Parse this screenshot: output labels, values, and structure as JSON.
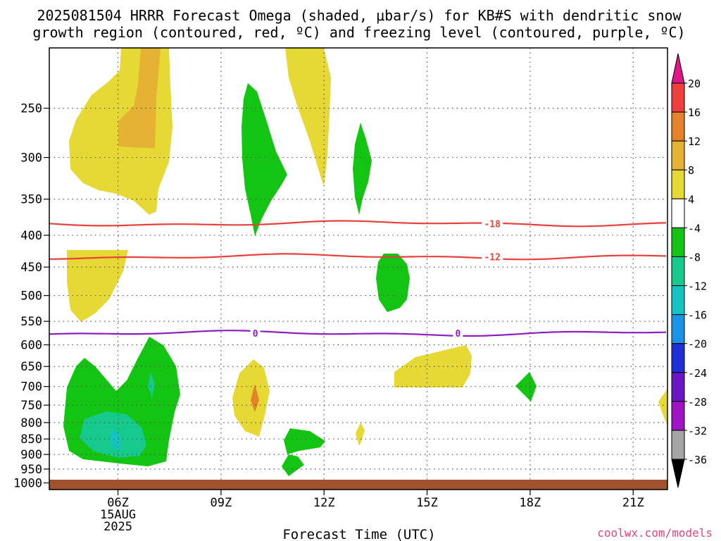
{
  "chart_data": {
    "type": "contour",
    "title_line1": "2025081504 HRRR Forecast Omega (shaded, μbar/s) for KB#S with dendritic snow",
    "title_line2": "growth region (contoured, red, ºC) and freezing level (contoured, purple, ºC)",
    "xlabel": "Forecast Time (UTC)",
    "watermark": "coolwx.com/models",
    "x_ticks": [
      {
        "label": "06Z",
        "hour": 6,
        "sub1": "15AUG",
        "sub2": "2025"
      },
      {
        "label": "09Z",
        "hour": 9
      },
      {
        "label": "12Z",
        "hour": 12
      },
      {
        "label": "15Z",
        "hour": 15
      },
      {
        "label": "18Z",
        "hour": 18
      },
      {
        "label": "21Z",
        "hour": 21
      }
    ],
    "x_range_hours": [
      4,
      22
    ],
    "y_ticks": [
      {
        "label": "250",
        "p": 250
      },
      {
        "label": "300",
        "p": 300
      },
      {
        "label": "350",
        "p": 350
      },
      {
        "label": "400",
        "p": 400
      },
      {
        "label": "450",
        "p": 450
      },
      {
        "label": "500",
        "p": 500
      },
      {
        "label": "550",
        "p": 550
      },
      {
        "label": "600",
        "p": 600
      },
      {
        "label": "650",
        "p": 650
      },
      {
        "label": "700",
        "p": 700
      },
      {
        "label": "750",
        "p": 750
      },
      {
        "label": "800",
        "p": 800
      },
      {
        "label": "850",
        "p": 850
      },
      {
        "label": "900",
        "p": 900
      },
      {
        "label": "950",
        "p": 950
      },
      {
        "label": "1000",
        "p": 1000
      }
    ],
    "y_range_hpa": [
      200,
      1025
    ],
    "y_scale": "log",
    "grid": true,
    "contour_lines": [
      {
        "label": "-18",
        "color": "#e8403a",
        "pressure_hpa": 383,
        "label_hour": 16.9
      },
      {
        "label": "-12",
        "color": "#e8403a",
        "pressure_hpa": 433,
        "label_hour": 16.9
      },
      {
        "label": "0",
        "color": "#8e1ec0",
        "pressure_hpa": 575,
        "label_hour": 10.0
      },
      {
        "label": "0",
        "color": "#8e1ec0",
        "pressure_hpa": 575,
        "label_hour": 15.9
      }
    ],
    "colorbar": {
      "levels": [
        {
          "label": "20",
          "color": "#e8418a"
        },
        {
          "label": "16",
          "color": "#ee3e3e"
        },
        {
          "label": "12",
          "color": "#e5822a"
        },
        {
          "label": "8",
          "color": "#e6b234"
        },
        {
          "label": "4",
          "color": "#e6d835"
        },
        {
          "label": "-4",
          "color": "#ffffff"
        },
        {
          "label": "-8",
          "color": "#13c413"
        },
        {
          "label": "-12",
          "color": "#16c98c"
        },
        {
          "label": "-16",
          "color": "#15c3c3"
        },
        {
          "label": "-20",
          "color": "#1a93e6"
        },
        {
          "label": "-24",
          "color": "#2030d8"
        },
        {
          "label": "-28",
          "color": "#6a16c4"
        },
        {
          "label": "-32",
          "color": "#a012c4"
        },
        {
          "label": "-36",
          "color": "#a5a5a5"
        }
      ],
      "top_arrow_color": "#e0158a",
      "bottom_arrow_color": "#000000"
    },
    "surface_color": "#a0522d"
  }
}
